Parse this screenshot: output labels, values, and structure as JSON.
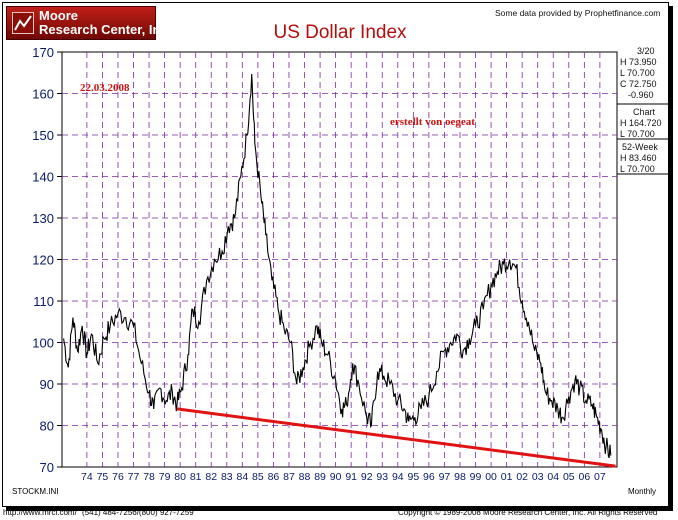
{
  "header": {
    "logo_line1": "Moore",
    "logo_line2": "Research Center, Inc.",
    "provider": "Some data provided by Prophetfinance.com"
  },
  "sidebar": {
    "date": "3/20",
    "H": "H  73.950",
    "L": "L  70.700",
    "C": "C  72.750",
    "change": "-0.960",
    "chart_label": "Chart",
    "chart_H": "H 164.720",
    "chart_L": "L  70.700",
    "week_label": "52-Week",
    "week_H": "H  83.460",
    "week_L": "L  70.700"
  },
  "footer": {
    "symbol": "STOCKM.INI",
    "period": "Monthly",
    "url": "http://www.mrci.com/",
    "phone": "(541) 484-7256/(800) 927-7259",
    "copyright": "Copyright © 1989-2008 Moore Research Center, Inc. All Rights Reserved"
  },
  "chart_data": {
    "type": "line",
    "title": "US Dollar Index",
    "ylim": [
      70,
      170
    ],
    "yticks": [
      70,
      80,
      90,
      100,
      110,
      120,
      130,
      140,
      150,
      160,
      170
    ],
    "xlabels": [
      "74",
      "75",
      "76",
      "77",
      "78",
      "79",
      "80",
      "81",
      "82",
      "83",
      "84",
      "85",
      "86",
      "87",
      "88",
      "89",
      "90",
      "91",
      "92",
      "93",
      "94",
      "95",
      "96",
      "97",
      "98",
      "99",
      "00",
      "01",
      "02",
      "03",
      "04",
      "05",
      "06",
      "07"
    ],
    "grid": true,
    "series": [
      {
        "values": [
          [
            1973.0,
            101
          ],
          [
            1973.3,
            94
          ],
          [
            1973.6,
            106
          ],
          [
            1973.9,
            98
          ],
          [
            1974.2,
            104
          ],
          [
            1974.5,
            97
          ],
          [
            1974.8,
            102
          ],
          [
            1975.2,
            95
          ],
          [
            1975.6,
            101
          ],
          [
            1976.0,
            104
          ],
          [
            1976.5,
            107
          ],
          [
            1977.0,
            106
          ],
          [
            1977.5,
            104
          ],
          [
            1978.0,
            95
          ],
          [
            1978.5,
            88
          ],
          [
            1978.8,
            84
          ],
          [
            1979.2,
            89
          ],
          [
            1979.6,
            86
          ],
          [
            1980.0,
            88
          ],
          [
            1980.3,
            85
          ],
          [
            1980.6,
            89
          ],
          [
            1981.0,
            97
          ],
          [
            1981.3,
            108
          ],
          [
            1981.7,
            105
          ],
          [
            1982.2,
            115
          ],
          [
            1982.7,
            120
          ],
          [
            1983.2,
            122
          ],
          [
            1983.6,
            128
          ],
          [
            1984.0,
            130
          ],
          [
            1984.4,
            140
          ],
          [
            1984.8,
            150
          ],
          [
            1985.1,
            164.7
          ],
          [
            1985.3,
            148
          ],
          [
            1985.7,
            135
          ],
          [
            1986.0,
            126
          ],
          [
            1986.4,
            115
          ],
          [
            1986.8,
            108
          ],
          [
            1987.2,
            103
          ],
          [
            1987.6,
            100
          ],
          [
            1988.0,
            90
          ],
          [
            1988.4,
            94
          ],
          [
            1988.8,
            99
          ],
          [
            1989.3,
            104
          ],
          [
            1989.6,
            100
          ],
          [
            1990.0,
            97
          ],
          [
            1990.5,
            91
          ],
          [
            1990.9,
            84
          ],
          [
            1991.2,
            85
          ],
          [
            1991.6,
            95
          ],
          [
            1992.0,
            90
          ],
          [
            1992.5,
            82
          ],
          [
            1992.8,
            80
          ],
          [
            1993.2,
            93
          ],
          [
            1993.6,
            92
          ],
          [
            1994.0,
            90
          ],
          [
            1994.5,
            86
          ],
          [
            1994.9,
            84
          ],
          [
            1995.2,
            81
          ],
          [
            1995.6,
            82
          ],
          [
            1996.0,
            84
          ],
          [
            1996.5,
            87
          ],
          [
            1997.0,
            93
          ],
          [
            1997.5,
            98
          ],
          [
            1997.9,
            100
          ],
          [
            1998.3,
            102
          ],
          [
            1998.7,
            98
          ],
          [
            1999.1,
            101
          ],
          [
            1999.5,
            104
          ],
          [
            2000.0,
            108
          ],
          [
            2000.5,
            114
          ],
          [
            2000.9,
            117
          ],
          [
            2001.3,
            119
          ],
          [
            2001.7,
            120
          ],
          [
            2002.1,
            118
          ],
          [
            2002.5,
            110
          ],
          [
            2002.9,
            105
          ],
          [
            2003.3,
            98
          ],
          [
            2003.7,
            95
          ],
          [
            2004.0,
            88
          ],
          [
            2004.4,
            86
          ],
          [
            2004.8,
            84
          ],
          [
            2005.1,
            82
          ],
          [
            2005.5,
            87
          ],
          [
            2005.9,
            91
          ],
          [
            2006.2,
            89
          ],
          [
            2006.6,
            86
          ],
          [
            2007.0,
            85
          ],
          [
            2007.3,
            82
          ],
          [
            2007.6,
            79
          ],
          [
            2007.9,
            75
          ],
          [
            2008.2,
            72.75
          ]
        ]
      }
    ],
    "annotations": [
      {
        "text": "22.03.2008",
        "color": "#d01010"
      },
      {
        "text": "erstellt von oegeat",
        "color": "#d01010"
      }
    ],
    "trendline": {
      "points": [
        [
          1980.3,
          84
        ],
        [
          2008.5,
          70.2
        ]
      ],
      "color": "#e01212"
    }
  }
}
